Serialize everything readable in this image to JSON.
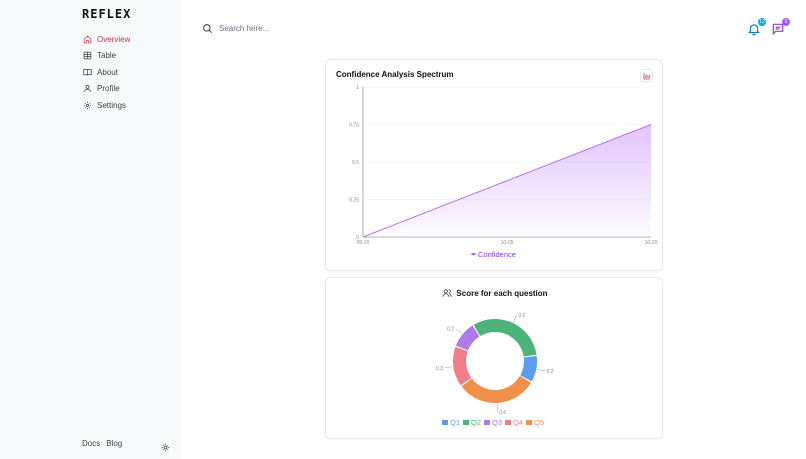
{
  "brand": {
    "logo_text": "REFLEX"
  },
  "sidebar": {
    "items": [
      {
        "label": "Overview",
        "icon": "home-icon",
        "active": true
      },
      {
        "label": "Table",
        "icon": "table-icon",
        "active": false
      },
      {
        "label": "About",
        "icon": "book-icon",
        "active": false
      },
      {
        "label": "Profile",
        "icon": "user-icon",
        "active": false
      },
      {
        "label": "Settings",
        "icon": "settings-icon",
        "active": false
      }
    ],
    "footer": {
      "docs": "Docs",
      "blog": "Blog"
    }
  },
  "header": {
    "search_placeholder": "Search here...",
    "notifications_count": "12",
    "messages_count": "6"
  },
  "colors": {
    "accent": "#c0394b",
    "line": "#a855f7",
    "notif_badge": "#0ea5e9",
    "msg_badge": "#a855f7",
    "q1": "#5b9bf0",
    "q2": "#4db37a",
    "q3": "#b07ae8",
    "q4": "#ef7e8a",
    "q5": "#f0904a"
  },
  "chart_data": [
    {
      "type": "area",
      "title": "Confidence Analysis Spectrum",
      "x": [
        "09-20",
        "10-20"
      ],
      "x_ticks": [
        "09-20",
        "10-05",
        "10-20"
      ],
      "series": [
        {
          "name": "Confidence",
          "values": [
            0,
            0.75
          ]
        }
      ],
      "y_ticks": [
        "0",
        "0.25",
        "0.5",
        "0.75",
        "1"
      ],
      "ylim": [
        0,
        1
      ],
      "legend": "bottom",
      "grid": true
    },
    {
      "type": "pie",
      "title": "Score for each question",
      "categories": [
        "Q1",
        "Q2",
        "Q3",
        "Q4",
        "Q5"
      ],
      "values": [
        0.2,
        0.6,
        0.2,
        0.3,
        0.6
      ],
      "value_labels": [
        "0.2",
        "0.6",
        "0.2",
        "0.3",
        "0.6"
      ],
      "legend": "bottom",
      "donut": true
    }
  ]
}
